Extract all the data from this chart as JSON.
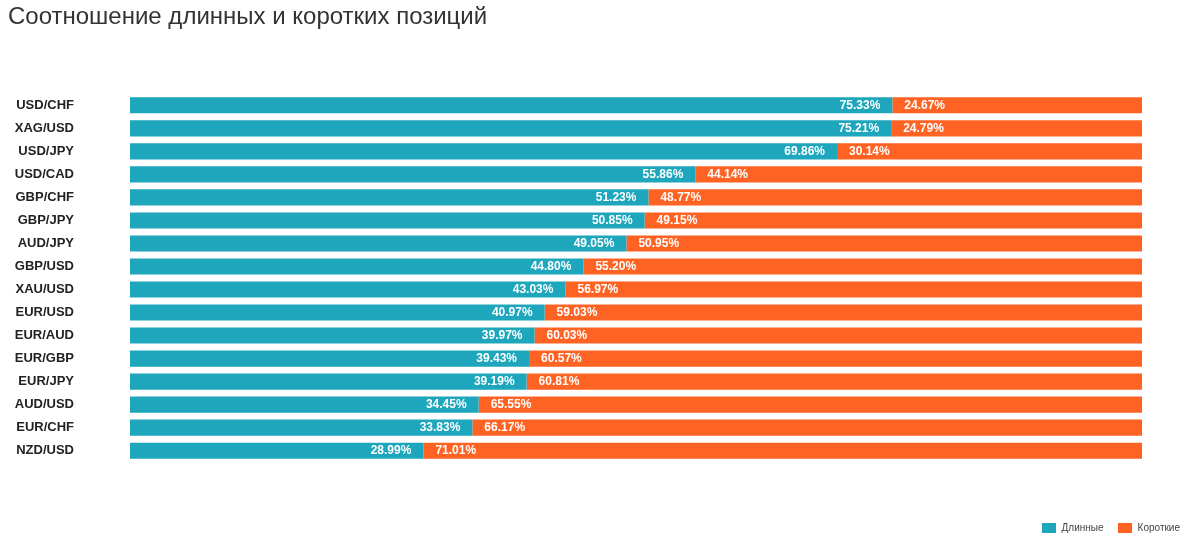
{
  "chart_data": {
    "type": "bar",
    "orientation": "horizontal",
    "stacked": true,
    "title": "Соотношение длинных и коротких позиций",
    "categories": [
      "USD/CHF",
      "XAG/USD",
      "USD/JPY",
      "USD/CAD",
      "GBP/CHF",
      "GBP/JPY",
      "AUD/JPY",
      "GBP/USD",
      "XAU/USD",
      "EUR/USD",
      "EUR/AUD",
      "EUR/GBP",
      "EUR/JPY",
      "AUD/USD",
      "EUR/CHF",
      "NZD/USD"
    ],
    "series": [
      {
        "name": "Длинные",
        "color": "#1ea6bd",
        "values": [
          75.33,
          75.21,
          69.86,
          55.86,
          51.23,
          50.85,
          49.05,
          44.8,
          43.03,
          40.97,
          39.97,
          39.43,
          39.19,
          34.45,
          33.83,
          28.99
        ],
        "value_labels": [
          "75.33%",
          "75.21%",
          "69.86%",
          "55.86%",
          "51.23%",
          "50.85%",
          "49.05%",
          "44.80%",
          "43.03%",
          "40.97%",
          "39.97%",
          "39.43%",
          "39.19%",
          "34.45%",
          "33.83%",
          "28.99%"
        ]
      },
      {
        "name": "Короткие",
        "color": "#fe6324",
        "values": [
          24.67,
          24.79,
          30.14,
          44.14,
          48.77,
          49.15,
          50.95,
          55.2,
          56.97,
          59.03,
          60.03,
          60.57,
          60.81,
          65.55,
          66.17,
          71.01
        ],
        "value_labels": [
          "24.67%",
          "24.79%",
          "30.14%",
          "44.14%",
          "48.77%",
          "49.15%",
          "50.95%",
          "55.20%",
          "56.97%",
          "59.03%",
          "60.03%",
          "60.57%",
          "60.81%",
          "65.55%",
          "66.17%",
          "71.01%"
        ]
      }
    ],
    "legend": "bottom right",
    "tick_labels": "y"
  }
}
